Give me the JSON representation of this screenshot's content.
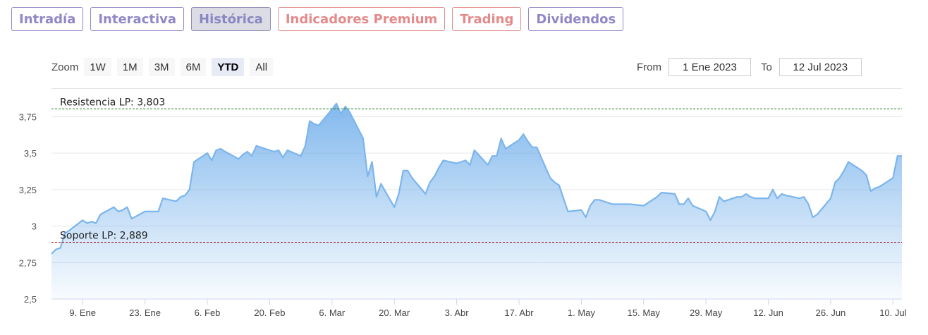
{
  "tabs": [
    {
      "label": "Intradía",
      "color": "purple",
      "active": false
    },
    {
      "label": "Interactiva",
      "color": "purple",
      "active": false
    },
    {
      "label": "Histórica",
      "color": "purple",
      "active": true
    },
    {
      "label": "Indicadores Premium",
      "color": "red",
      "active": false
    },
    {
      "label": "Trading",
      "color": "red",
      "active": false
    },
    {
      "label": "Dividendos",
      "color": "purple",
      "active": false
    }
  ],
  "zoom": {
    "label": "Zoom",
    "buttons": [
      "1W",
      "1M",
      "3M",
      "6M",
      "YTD",
      "All"
    ],
    "active": "YTD"
  },
  "range": {
    "from_label": "From",
    "from_value": "1 Ene 2023",
    "to_label": "To",
    "to_value": "12 Jul 2023"
  },
  "chart_data": {
    "type": "area",
    "title": "",
    "xlabel": "",
    "ylabel": "",
    "ylim": [
      2.5,
      3.95
    ],
    "y_ticks": [
      "2,5",
      "2,75",
      "3",
      "3,25",
      "3,5",
      "3,75"
    ],
    "x_ticks": [
      "9. Ene",
      "23. Ene",
      "6. Feb",
      "20. Feb",
      "6. Mar",
      "20. Mar",
      "3. Abr",
      "17. Abr",
      "1. May",
      "15. May",
      "29. May",
      "12. Jun",
      "26. Jun",
      "10. Jul"
    ],
    "colors": {
      "line": "#7cb5ec",
      "fill_top": "#7cb5ec",
      "grid": "#e6e6e6",
      "resistance": "#1a7a1a",
      "support": "#a01818"
    },
    "reference_lines": [
      {
        "label": "Resistencia LP: 3,803",
        "value": 3.803
      },
      {
        "label": "Soporte LP: 2,889",
        "value": 2.889
      }
    ],
    "x": [
      "2023-01-02",
      "2023-01-03",
      "2023-01-04",
      "2023-01-05",
      "2023-01-06",
      "2023-01-09",
      "2023-01-10",
      "2023-01-11",
      "2023-01-12",
      "2023-01-13",
      "2023-01-16",
      "2023-01-17",
      "2023-01-18",
      "2023-01-19",
      "2023-01-20",
      "2023-01-23",
      "2023-01-24",
      "2023-01-25",
      "2023-01-26",
      "2023-01-27",
      "2023-01-30",
      "2023-01-31",
      "2023-02-01",
      "2023-02-02",
      "2023-02-03",
      "2023-02-06",
      "2023-02-07",
      "2023-02-08",
      "2023-02-09",
      "2023-02-10",
      "2023-02-13",
      "2023-02-14",
      "2023-02-15",
      "2023-02-16",
      "2023-02-17",
      "2023-02-20",
      "2023-02-21",
      "2023-02-22",
      "2023-02-23",
      "2023-02-24",
      "2023-02-27",
      "2023-02-28",
      "2023-03-01",
      "2023-03-02",
      "2023-03-03",
      "2023-03-06",
      "2023-03-07",
      "2023-03-08",
      "2023-03-09",
      "2023-03-10",
      "2023-03-13",
      "2023-03-14",
      "2023-03-15",
      "2023-03-16",
      "2023-03-17",
      "2023-03-20",
      "2023-03-21",
      "2023-03-22",
      "2023-03-23",
      "2023-03-24",
      "2023-03-27",
      "2023-03-28",
      "2023-03-29",
      "2023-03-30",
      "2023-03-31",
      "2023-04-03",
      "2023-04-04",
      "2023-04-05",
      "2023-04-06",
      "2023-04-07",
      "2023-04-10",
      "2023-04-11",
      "2023-04-12",
      "2023-04-13",
      "2023-04-14",
      "2023-04-17",
      "2023-04-18",
      "2023-04-19",
      "2023-04-20",
      "2023-04-21",
      "2023-04-24",
      "2023-04-25",
      "2023-04-26",
      "2023-04-27",
      "2023-04-28",
      "2023-05-01",
      "2023-05-02",
      "2023-05-03",
      "2023-05-04",
      "2023-05-05",
      "2023-05-08",
      "2023-05-09",
      "2023-05-10",
      "2023-05-11",
      "2023-05-12",
      "2023-05-15",
      "2023-05-16",
      "2023-05-17",
      "2023-05-18",
      "2023-05-19",
      "2023-05-22",
      "2023-05-23",
      "2023-05-24",
      "2023-05-25",
      "2023-05-26",
      "2023-05-29",
      "2023-05-30",
      "2023-05-31",
      "2023-06-01",
      "2023-06-02",
      "2023-06-05",
      "2023-06-06",
      "2023-06-07",
      "2023-06-08",
      "2023-06-09",
      "2023-06-12",
      "2023-06-13",
      "2023-06-14",
      "2023-06-15",
      "2023-06-16",
      "2023-06-19",
      "2023-06-20",
      "2023-06-21",
      "2023-06-22",
      "2023-06-23",
      "2023-06-26",
      "2023-06-27",
      "2023-06-28",
      "2023-06-29",
      "2023-06-30",
      "2023-07-03",
      "2023-07-04",
      "2023-07-05",
      "2023-07-06",
      "2023-07-07",
      "2023-07-10",
      "2023-07-11",
      "2023-07-12"
    ],
    "series": [
      {
        "name": "",
        "values": [
          2.81,
          2.84,
          2.85,
          2.95,
          2.97,
          3.04,
          3.02,
          3.03,
          3.02,
          3.08,
          3.13,
          3.1,
          3.11,
          3.13,
          3.05,
          3.1,
          3.1,
          3.1,
          3.1,
          3.19,
          3.17,
          3.2,
          3.21,
          3.25,
          3.44,
          3.5,
          3.45,
          3.52,
          3.53,
          3.51,
          3.46,
          3.49,
          3.51,
          3.48,
          3.55,
          3.52,
          3.51,
          3.52,
          3.47,
          3.52,
          3.48,
          3.55,
          3.72,
          3.7,
          3.69,
          3.8,
          3.84,
          3.77,
          3.82,
          3.78,
          3.6,
          3.34,
          3.44,
          3.2,
          3.29,
          3.13,
          3.22,
          3.38,
          3.38,
          3.33,
          3.22,
          3.3,
          3.34,
          3.4,
          3.45,
          3.43,
          3.44,
          3.45,
          3.42,
          3.52,
          3.42,
          3.48,
          3.48,
          3.6,
          3.53,
          3.59,
          3.63,
          3.58,
          3.54,
          3.54,
          3.33,
          3.3,
          3.28,
          3.19,
          3.1,
          3.11,
          3.06,
          3.14,
          3.18,
          3.18,
          3.15,
          3.15,
          3.15,
          3.15,
          3.15,
          3.14,
          3.16,
          3.18,
          3.2,
          3.23,
          3.22,
          3.15,
          3.15,
          3.19,
          3.14,
          3.1,
          3.04,
          3.1,
          3.2,
          3.17,
          3.2,
          3.2,
          3.22,
          3.2,
          3.19,
          3.19,
          3.25,
          3.19,
          3.22,
          3.21,
          3.19,
          3.2,
          3.15,
          3.06,
          3.08,
          3.19,
          3.3,
          3.33,
          3.38,
          3.44,
          3.38,
          3.35,
          3.24,
          3.26,
          3.27,
          3.33,
          3.48,
          3.48
        ]
      }
    ]
  }
}
